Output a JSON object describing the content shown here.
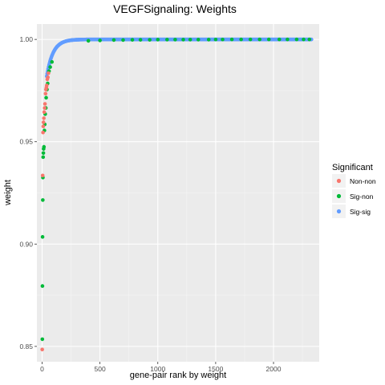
{
  "chart_data": {
    "type": "scatter",
    "title": "VEGFSignaling: Weights",
    "xlabel": "gene-pair rank by weight",
    "ylabel": "weight",
    "xlim": [
      -45,
      2395
    ],
    "ylim": [
      0.8425,
      1.0075
    ],
    "x_ticks": [
      0,
      500,
      1000,
      1500,
      2000
    ],
    "x_tick_labels": [
      "0",
      "500",
      "1000",
      "1500",
      "2000"
    ],
    "y_ticks": [
      0.85,
      0.9,
      0.95,
      1.0
    ],
    "y_tick_labels": [
      "0.85",
      "0.90",
      "0.95",
      "1.00"
    ],
    "grid": true,
    "legend": {
      "title": "Significant",
      "position": "right",
      "entries": [
        {
          "label": "Non-non",
          "color": "#F8766D"
        },
        {
          "label": "Sig-non",
          "color": "#00BA38"
        },
        {
          "label": "Sig-sig",
          "color": "#619CFF"
        }
      ]
    },
    "x_max": 2330,
    "series": [
      {
        "name": "Non-non",
        "color": "#F8766D",
        "points": [
          [
            1,
            0.8485
          ],
          [
            5,
            0.9335
          ],
          [
            8,
            0.9545
          ],
          [
            10,
            0.9575
          ],
          [
            12,
            0.9595
          ],
          [
            15,
            0.9615
          ],
          [
            18,
            0.9645
          ],
          [
            22,
            0.9665
          ],
          [
            25,
            0.9685
          ],
          [
            30,
            0.9735
          ],
          [
            33,
            0.9755
          ],
          [
            37,
            0.9765
          ],
          [
            40,
            0.9775
          ],
          [
            45,
            0.9805
          ],
          [
            50,
            0.9815
          ],
          [
            55,
            0.9835
          ]
        ]
      },
      {
        "name": "Sig-non",
        "color": "#00BA38",
        "points": [
          [
            2,
            0.8535
          ],
          [
            3,
            0.8795
          ],
          [
            4,
            0.9035
          ],
          [
            6,
            0.9215
          ],
          [
            7,
            0.9325
          ],
          [
            9,
            0.9425
          ],
          [
            11,
            0.9445
          ],
          [
            13,
            0.9465
          ],
          [
            16,
            0.9475
          ],
          [
            20,
            0.9555
          ],
          [
            23,
            0.9585
          ],
          [
            27,
            0.9635
          ],
          [
            32,
            0.9665
          ],
          [
            35,
            0.9715
          ],
          [
            42,
            0.9755
          ],
          [
            48,
            0.9785
          ],
          [
            60,
            0.9845
          ],
          [
            70,
            0.9865
          ],
          [
            85,
            0.989
          ],
          [
            400,
            0.9993
          ],
          [
            500,
            0.9995
          ],
          [
            620,
            0.9997
          ],
          [
            700,
            0.9997
          ],
          [
            780,
            0.9998
          ],
          [
            850,
            0.9998
          ],
          [
            930,
            0.9998
          ],
          [
            1000,
            0.9999
          ],
          [
            1080,
            0.9999
          ],
          [
            1150,
            0.9999
          ],
          [
            1220,
            0.9999
          ],
          [
            1280,
            0.9999
          ],
          [
            1350,
            0.9999
          ],
          [
            1440,
            0.9999
          ],
          [
            1500,
            0.99995
          ],
          [
            1560,
            0.99995
          ],
          [
            1640,
            1.0
          ],
          [
            1720,
            1.0
          ],
          [
            1800,
            1.0
          ],
          [
            1880,
            1.0
          ],
          [
            1960,
            1.0
          ],
          [
            2050,
            1.0
          ],
          [
            2120,
            1.0
          ],
          [
            2200,
            1.0
          ],
          [
            2260,
            1.0
          ],
          [
            2310,
            1.0
          ]
        ]
      },
      {
        "name": "Sig-sig",
        "color": "#619CFF",
        "curve": {
          "n": 2330,
          "start": 0.982,
          "end": 1.0,
          "tau": 55
        }
      }
    ]
  }
}
